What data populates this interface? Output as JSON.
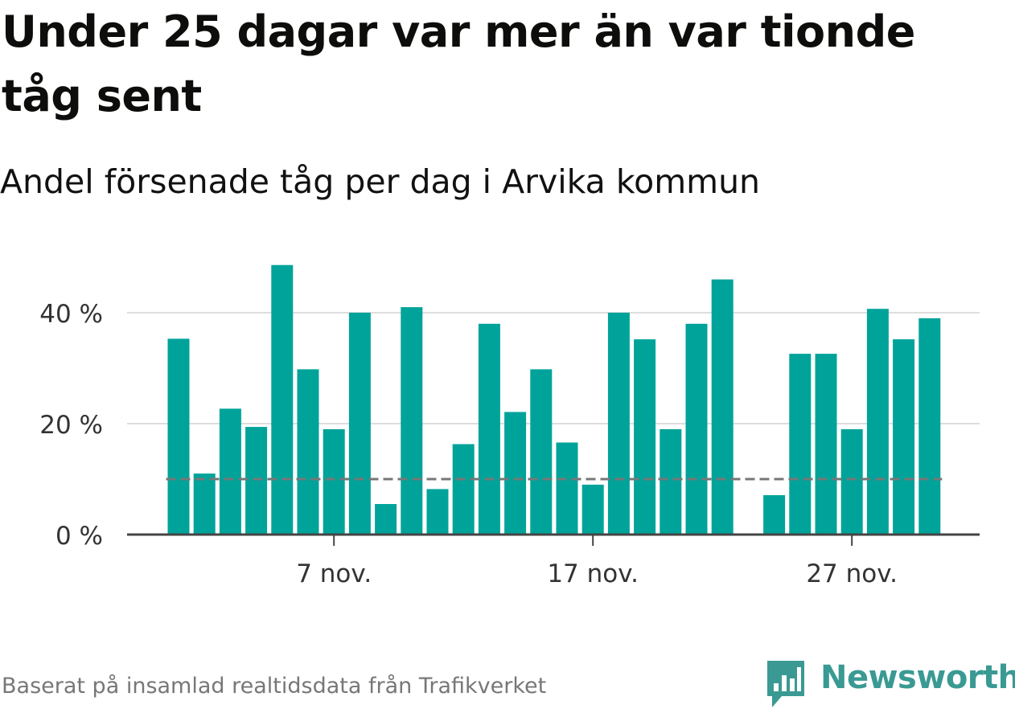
{
  "title": "Under 25 dagar var mer än var tionde tåg sent",
  "subtitle": "Andel försenade tåg per dag i Arvika kommun",
  "footer": "Baserat på insamlad realtidsdata från Trafikverket",
  "brand": {
    "name": "Newsworthy",
    "icon": "newsworthy-logo-icon"
  },
  "colors": {
    "bar": "#00a39a",
    "reference": "#777777",
    "grid": "#dddddd",
    "axis": "#444444",
    "brand": "#3a9a93"
  },
  "chart_data": {
    "type": "bar",
    "x": [
      "2020-11-01",
      "2020-11-02",
      "2020-11-03",
      "2020-11-04",
      "2020-11-05",
      "2020-11-06",
      "2020-11-07",
      "2020-11-08",
      "2020-11-09",
      "2020-11-10",
      "2020-11-11",
      "2020-11-12",
      "2020-11-13",
      "2020-11-14",
      "2020-11-15",
      "2020-11-16",
      "2020-11-17",
      "2020-11-18",
      "2020-11-19",
      "2020-11-20",
      "2020-11-21",
      "2020-11-22",
      "2020-11-23",
      "2020-11-24",
      "2020-11-25",
      "2020-11-26",
      "2020-11-27",
      "2020-11-28",
      "2020-11-29",
      "2020-11-30"
    ],
    "values": [
      35.3,
      11.0,
      22.7,
      19.4,
      48.6,
      29.8,
      19.0,
      40.0,
      5.5,
      41.0,
      8.2,
      16.3,
      38.0,
      22.1,
      29.8,
      16.6,
      9.0,
      40.0,
      35.2,
      19.0,
      38.0,
      46.0,
      null,
      7.1,
      32.6,
      32.6,
      19.0,
      40.7,
      35.2,
      39.0
    ],
    "reference_line": 10,
    "ylim": [
      0,
      50
    ],
    "yticks": [
      0,
      20,
      40
    ],
    "ytick_labels": [
      "0 %",
      "20 %",
      "40 %"
    ],
    "xticks": [
      "2020-11-07",
      "2020-11-17",
      "2020-11-27"
    ],
    "xtick_labels": [
      "7 nov.",
      "17 nov.",
      "27 nov."
    ],
    "grid": true,
    "xlabel": "",
    "ylabel": ""
  }
}
